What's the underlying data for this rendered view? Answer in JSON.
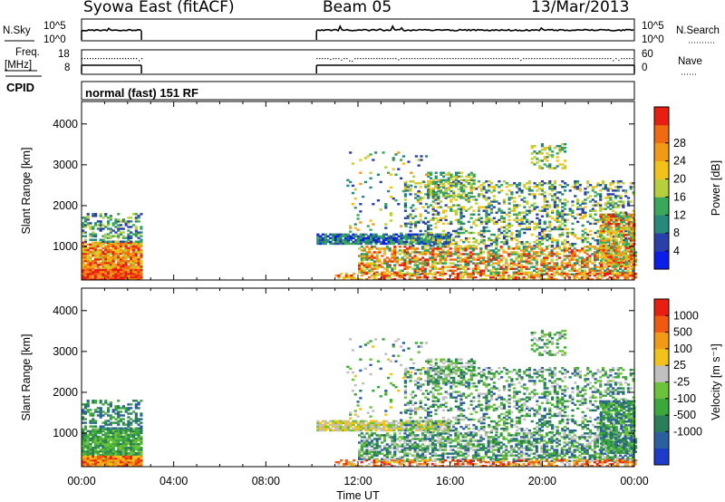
{
  "header": {
    "station": "Syowa East (fitACF)",
    "beam": "Beam 05",
    "date": "13/Mar/2013"
  },
  "panels": {
    "nsky_label": "N.Sky",
    "nsky_ticks": [
      "10^5",
      "10^0"
    ],
    "nsearch_label": "N.Search",
    "nsearch_ticks": [
      "10^5",
      "10^0"
    ],
    "freq_label_1": "Freq.",
    "freq_label_2": "[MHz]",
    "freq_ticks": [
      "18",
      "8"
    ],
    "nave_label": "Nave",
    "nave_ticks": [
      "60",
      "0"
    ],
    "cpid_label": "CPID",
    "cpid_text": "normal (fast) 151 RF"
  },
  "chart_data": [
    {
      "type": "heatmap",
      "name": "power",
      "xlabel": "",
      "ylabel": "Slant Range [km]",
      "xlim": [
        0,
        24
      ],
      "ylim": [
        180,
        4550
      ],
      "yticks": [
        "1000",
        "2000",
        "3000",
        "4000"
      ],
      "colorbar_label": "Power [dB]",
      "colorbar_ticks": [
        "4",
        "8",
        "12",
        "16",
        "20",
        "24",
        "28"
      ],
      "colorbar_colors": [
        "#0a1ee8",
        "#2b3fa8",
        "#27897a",
        "#3aa85a",
        "#b7cf3a",
        "#f2c21a",
        "#f29a16",
        "#ef6a10",
        "#e81e10"
      ],
      "data_gap_hours": [
        2.6,
        10.2
      ]
    },
    {
      "type": "heatmap",
      "name": "velocity",
      "xlabel": "Time UT",
      "ylabel": "Slant Range [km]",
      "xlim": [
        0,
        24
      ],
      "ylim": [
        180,
        4550
      ],
      "xticks": [
        "00:00",
        "04:00",
        "08:00",
        "12:00",
        "16:00",
        "20:00",
        "00:00"
      ],
      "yticks": [
        "1000",
        "2000",
        "3000",
        "4000"
      ],
      "colorbar_label": "Velocity [m s⁻¹]",
      "colorbar_ticks": [
        "1000",
        "500",
        "100",
        "25",
        "-25",
        "-100",
        "-500",
        "-1000"
      ],
      "colorbar_colors": [
        "#1e3cc8",
        "#2c5fa0",
        "#2a7f5a",
        "#3aa83a",
        "#6cc23a",
        "#c0c0c0",
        "#f2c21a",
        "#f29a16",
        "#ef5a10",
        "#e81e10"
      ],
      "data_gap_hours": [
        2.6,
        10.2
      ]
    }
  ]
}
